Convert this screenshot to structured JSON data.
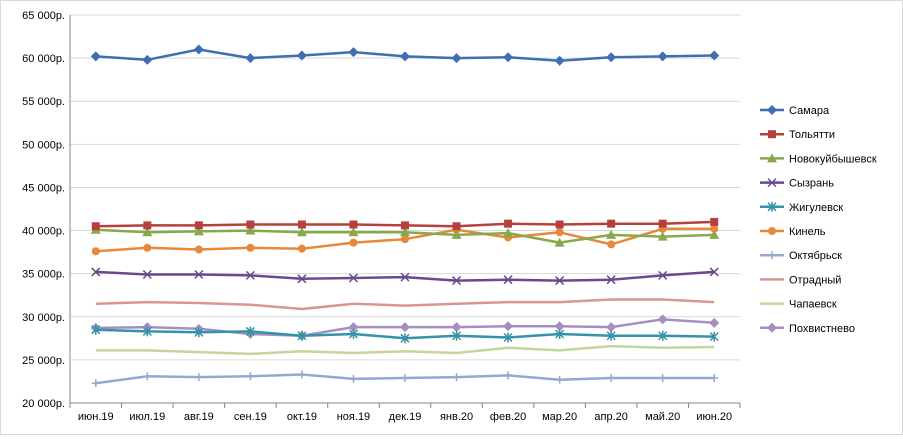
{
  "chart_data": {
    "type": "line",
    "title": "",
    "xlabel": "",
    "ylabel": "",
    "categories": [
      "июн.19",
      "июл.19",
      "авг.19",
      "сен.19",
      "окт.19",
      "ноя.19",
      "дек.19",
      "янв.20",
      "фев.20",
      "мар.20",
      "апр.20",
      "май.20",
      "июн.20"
    ],
    "ylim": [
      20000,
      65000
    ],
    "ytick_values": [
      20000,
      25000,
      30000,
      35000,
      40000,
      45000,
      50000,
      55000,
      60000,
      65000
    ],
    "ytick_labels": [
      "20 000р.",
      "25 000р.",
      "30 000р.",
      "35 000р.",
      "40 000р.",
      "45 000р.",
      "50 000р.",
      "55 000р.",
      "60 000р.",
      "65 000р."
    ],
    "grid": "horizontal",
    "legend_position": "right",
    "series": [
      {
        "name": "Самара",
        "color": "#3f6fb3",
        "marker": "diamond",
        "values": [
          60200,
          59800,
          61000,
          60000,
          60300,
          60700,
          60200,
          60000,
          60100,
          59700,
          60100,
          60200,
          60300
        ]
      },
      {
        "name": "Тольятти",
        "color": "#b5413e",
        "marker": "square",
        "values": [
          40500,
          40600,
          40600,
          40700,
          40700,
          40700,
          40600,
          40500,
          40800,
          40700,
          40800,
          40800,
          41000
        ]
      },
      {
        "name": "Новокуйбышевск",
        "color": "#87a94a",
        "marker": "triangle",
        "values": [
          40100,
          39800,
          39900,
          40000,
          39800,
          39800,
          39800,
          39500,
          39700,
          38600,
          39500,
          39300,
          39500
        ]
      },
      {
        "name": "Сызрань",
        "color": "#6a4a8c",
        "marker": "x",
        "values": [
          35200,
          34900,
          34900,
          34800,
          34400,
          34500,
          34600,
          34200,
          34300,
          34200,
          34300,
          34800,
          35200
        ]
      },
      {
        "name": "Жигулевск",
        "color": "#3593a8",
        "marker": "asterisk",
        "values": [
          28500,
          28300,
          28200,
          28300,
          27800,
          28000,
          27500,
          27800,
          27600,
          28000,
          27800,
          27800,
          27700
        ]
      },
      {
        "name": "Кинель",
        "color": "#e8883a",
        "marker": "circle",
        "values": [
          37600,
          38000,
          37800,
          38000,
          37900,
          38600,
          39000,
          40100,
          39200,
          39800,
          38400,
          40200,
          40200
        ]
      },
      {
        "name": "Октябрьск",
        "color": "#94a9d0",
        "marker": "plus",
        "values": [
          22300,
          23100,
          23000,
          23100,
          23300,
          22800,
          22900,
          23000,
          23200,
          22700,
          22900,
          22900,
          22900
        ]
      },
      {
        "name": "Отрадный",
        "color": "#d99591",
        "marker": "none",
        "values": [
          31500,
          31700,
          31600,
          31400,
          30900,
          31500,
          31300,
          31500,
          31700,
          31700,
          32000,
          32000,
          31700
        ]
      },
      {
        "name": "Чапаевск",
        "color": "#c3d69b",
        "marker": "none",
        "values": [
          26100,
          26100,
          25900,
          25700,
          26000,
          25800,
          26000,
          25800,
          26400,
          26100,
          26600,
          26400,
          26500
        ]
      },
      {
        "name": "Похвистнево",
        "color": "#a58fc0",
        "marker": "diamond",
        "values": [
          28700,
          28800,
          28600,
          28000,
          27800,
          28800,
          28800,
          28800,
          28900,
          28900,
          28800,
          29700,
          29300
        ]
      }
    ]
  }
}
